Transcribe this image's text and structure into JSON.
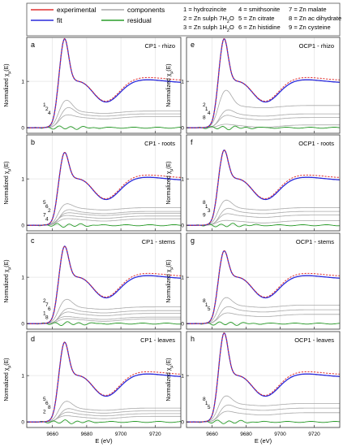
{
  "legend": {
    "experimental": "experimental",
    "fit": "fit",
    "components": "components",
    "residual": "residual",
    "species": [
      {
        "n": "1",
        "name": "hydrozincite"
      },
      {
        "n": "2",
        "name": "Zn sulph 7H",
        "sub": "2",
        "tail": "O"
      },
      {
        "n": "3",
        "name": "Zn sulph 1H",
        "sub": "2",
        "tail": "O"
      },
      {
        "n": "4",
        "name": "smithsonite"
      },
      {
        "n": "5",
        "name": "Zn citrate"
      },
      {
        "n": "6",
        "name": "Zn histidine"
      },
      {
        "n": "7",
        "name": "Zn malate"
      },
      {
        "n": "8",
        "name": "Zn ac dihydrate"
      },
      {
        "n": "9",
        "name": "Zn cysteine"
      }
    ]
  },
  "colors": {
    "experimental": "#e03030",
    "fit": "#2a2adc",
    "components": "#a8a8a8",
    "residual": "#2a9d2a"
  },
  "y_axis_label": {
    "prefix": "Normalized χ",
    "sub": "μ",
    "suffix": "(E)"
  },
  "x_axis_label": "E (eV)",
  "chart_data": [
    {
      "type": "line",
      "letter": "a",
      "title": "CP1 - rhizo",
      "column": "left",
      "labels": [
        "1",
        "2",
        "4"
      ],
      "xlim": [
        9645,
        9735
      ],
      "xticks": [
        9660,
        9680,
        9700,
        9720
      ],
      "yticks": [
        0,
        1
      ],
      "ylim": [
        -0.12,
        1.95
      ],
      "grid": true
    },
    {
      "type": "line",
      "letter": "b",
      "title": "CP1 - roots",
      "column": "left",
      "labels": [
        "5",
        "6",
        "2",
        "7",
        "4"
      ],
      "xlim": [
        9645,
        9735
      ],
      "xticks": [
        9660,
        9680,
        9700,
        9720
      ],
      "yticks": [
        0,
        1
      ],
      "ylim": [
        -0.12,
        1.95
      ],
      "grid": true
    },
    {
      "type": "line",
      "letter": "c",
      "title": "CP1 - stems",
      "column": "left",
      "labels": [
        "2",
        "7",
        "6",
        "1",
        "8"
      ],
      "xlim": [
        9645,
        9735
      ],
      "xticks": [
        9660,
        9680,
        9700,
        9720
      ],
      "yticks": [
        0,
        1
      ],
      "ylim": [
        -0.12,
        1.95
      ],
      "grid": true
    },
    {
      "type": "line",
      "letter": "d",
      "title": "CP1 - leaves",
      "column": "left",
      "labels": [
        "5",
        "6",
        "8",
        "2"
      ],
      "xlim": [
        9645,
        9735
      ],
      "xticks": [
        9660,
        9680,
        9700,
        9720
      ],
      "yticks": [
        0,
        1
      ],
      "ylim": [
        -0.12,
        1.95
      ],
      "grid": true
    },
    {
      "type": "line",
      "letter": "e",
      "title": "OCP1 - rhizo",
      "column": "right",
      "labels": [
        "2",
        "1",
        "4",
        "8"
      ],
      "xlim": [
        9645,
        9735
      ],
      "xticks": [
        9660,
        9680,
        9700,
        9720
      ],
      "yticks": [
        0,
        1
      ],
      "ylim": [
        -0.12,
        1.95
      ],
      "grid": true
    },
    {
      "type": "line",
      "letter": "f",
      "title": "OCP1 - roots",
      "column": "right",
      "labels": [
        "8",
        "1",
        "3",
        "9"
      ],
      "xlim": [
        9645,
        9735
      ],
      "xticks": [
        9660,
        9680,
        9700,
        9720
      ],
      "yticks": [
        0,
        1
      ],
      "ylim": [
        -0.12,
        1.95
      ],
      "grid": true
    },
    {
      "type": "line",
      "letter": "g",
      "title": "OCP1 - stems",
      "column": "right",
      "labels": [
        "8",
        "1",
        "5"
      ],
      "xlim": [
        9645,
        9735
      ],
      "xticks": [
        9660,
        9680,
        9700,
        9720
      ],
      "yticks": [
        0,
        1
      ],
      "ylim": [
        -0.12,
        1.95
      ],
      "grid": true
    },
    {
      "type": "line",
      "letter": "h",
      "title": "OCP1 - leaves",
      "column": "right",
      "labels": [
        "8",
        "1",
        "5"
      ],
      "xlim": [
        9645,
        9735
      ],
      "xticks": [
        9660,
        9680,
        9700,
        9720
      ],
      "yticks": [
        0,
        1
      ],
      "ylim": [
        -0.12,
        1.95
      ],
      "grid": true
    }
  ]
}
